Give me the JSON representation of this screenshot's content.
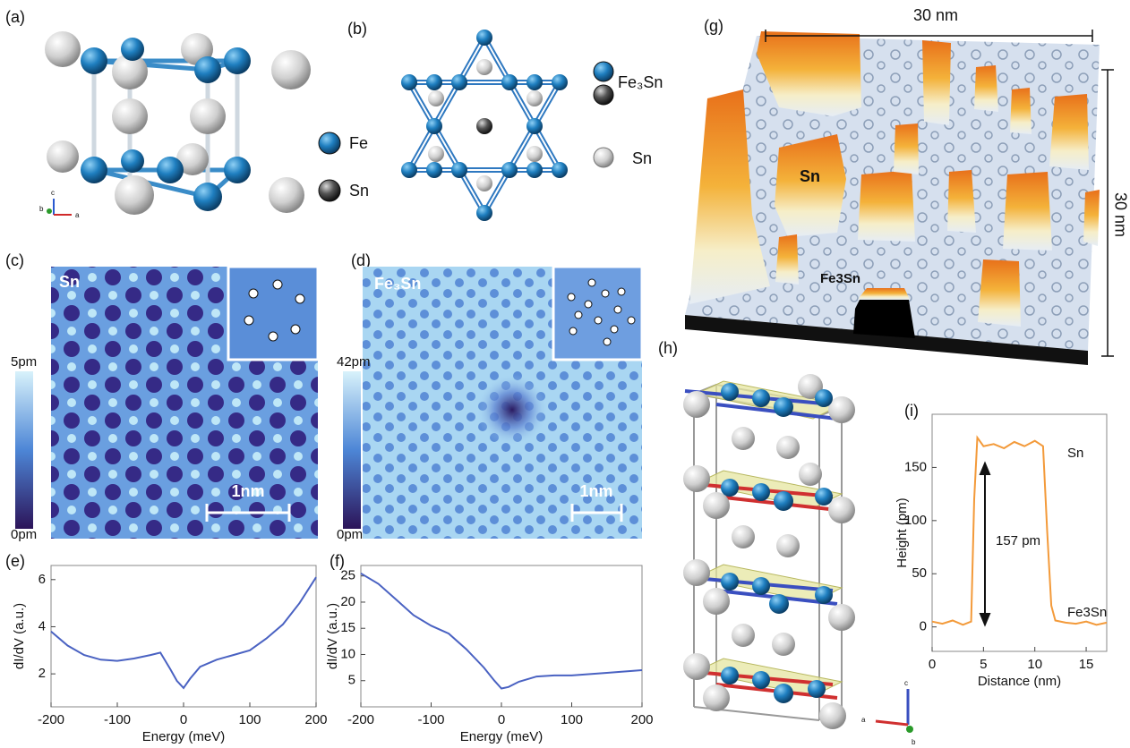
{
  "panel_labels": [
    "(a)",
    "(b)",
    "(c)",
    "(d)",
    "(e)",
    "(f)",
    "(g)",
    "(h)",
    "(i)"
  ],
  "panel_a": {
    "legend": [
      "Fe",
      "Sn"
    ],
    "axes": [
      "c",
      "b",
      "a"
    ]
  },
  "panel_b": {
    "legend": [
      "Fe₃Sn",
      "Sn"
    ]
  },
  "panel_c": {
    "label": "Sn",
    "colorbar": [
      "5pm",
      "0pm"
    ],
    "scalebar": "1nm"
  },
  "panel_d": {
    "label": "Fe₃Sn",
    "colorbar": [
      "42pm",
      "0pm"
    ],
    "scalebar": "1nm"
  },
  "panel_g": {
    "width": "30 nm",
    "height": "30 nm",
    "labels": [
      "Sn",
      "Fe3Sn"
    ]
  },
  "panel_h": {
    "axes": [
      "c",
      "a",
      "b"
    ]
  },
  "chart_data": [
    {
      "type": "line",
      "xlabel": "Energy (meV)",
      "ylabel": "dI/dV (a.u.)",
      "x": [
        -200,
        -175,
        -150,
        -125,
        -100,
        -75,
        -50,
        -35,
        -20,
        -10,
        0,
        10,
        25,
        50,
        75,
        100,
        125,
        150,
        175,
        200
      ],
      "series": [
        {
          "color": "#4a62c2",
          "values": [
            3.8,
            3.2,
            2.8,
            2.6,
            2.55,
            2.65,
            2.8,
            2.9,
            2.2,
            1.7,
            1.4,
            1.8,
            2.3,
            2.6,
            2.8,
            3.0,
            3.5,
            4.1,
            5.0,
            6.1
          ]
        }
      ],
      "xlim": [
        -200,
        200
      ],
      "ylim": [
        0.6,
        6.6
      ],
      "xticks": [
        -200,
        -100,
        0,
        100,
        200
      ],
      "yticks": [
        2,
        4,
        6
      ]
    },
    {
      "type": "line",
      "xlabel": "Energy (meV)",
      "ylabel": "dI/dV (a.u.)",
      "x": [
        -200,
        -175,
        -150,
        -125,
        -100,
        -75,
        -50,
        -25,
        -10,
        0,
        10,
        25,
        50,
        75,
        100,
        150,
        200
      ],
      "series": [
        {
          "color": "#4a62c2",
          "values": [
            25.5,
            23.5,
            20.5,
            17.5,
            15.5,
            14,
            11,
            7.5,
            5,
            3.5,
            3.8,
            4.8,
            5.8,
            6,
            6,
            6.5,
            7
          ]
        }
      ],
      "xlim": [
        -200,
        200
      ],
      "ylim": [
        0,
        27
      ],
      "xticks": [
        -200,
        -100,
        0,
        100,
        200
      ],
      "yticks": [
        5,
        10,
        15,
        20,
        25
      ]
    },
    {
      "type": "line",
      "xlabel": "Distance (nm)",
      "ylabel": "Height (pm)",
      "x": [
        0,
        1,
        2,
        3,
        3.8,
        4.1,
        4.4,
        5,
        6,
        7,
        8,
        9,
        10,
        10.8,
        11.2,
        11.6,
        12,
        13,
        14,
        15,
        16,
        17
      ],
      "series": [
        {
          "color": "#f39a3a",
          "values": [
            5,
            3,
            6,
            2,
            5,
            120,
            178,
            170,
            172,
            168,
            174,
            170,
            175,
            170,
            90,
            20,
            6,
            4,
            3,
            5,
            2,
            4
          ]
        }
      ],
      "xlim": [
        0,
        17
      ],
      "ylim": [
        -23,
        200
      ],
      "xticks": [
        0,
        5,
        10,
        15
      ],
      "yticks": [
        0,
        50,
        100,
        150
      ],
      "annotations": [
        "Sn",
        "Fe3Sn",
        "157 pm"
      ]
    }
  ]
}
